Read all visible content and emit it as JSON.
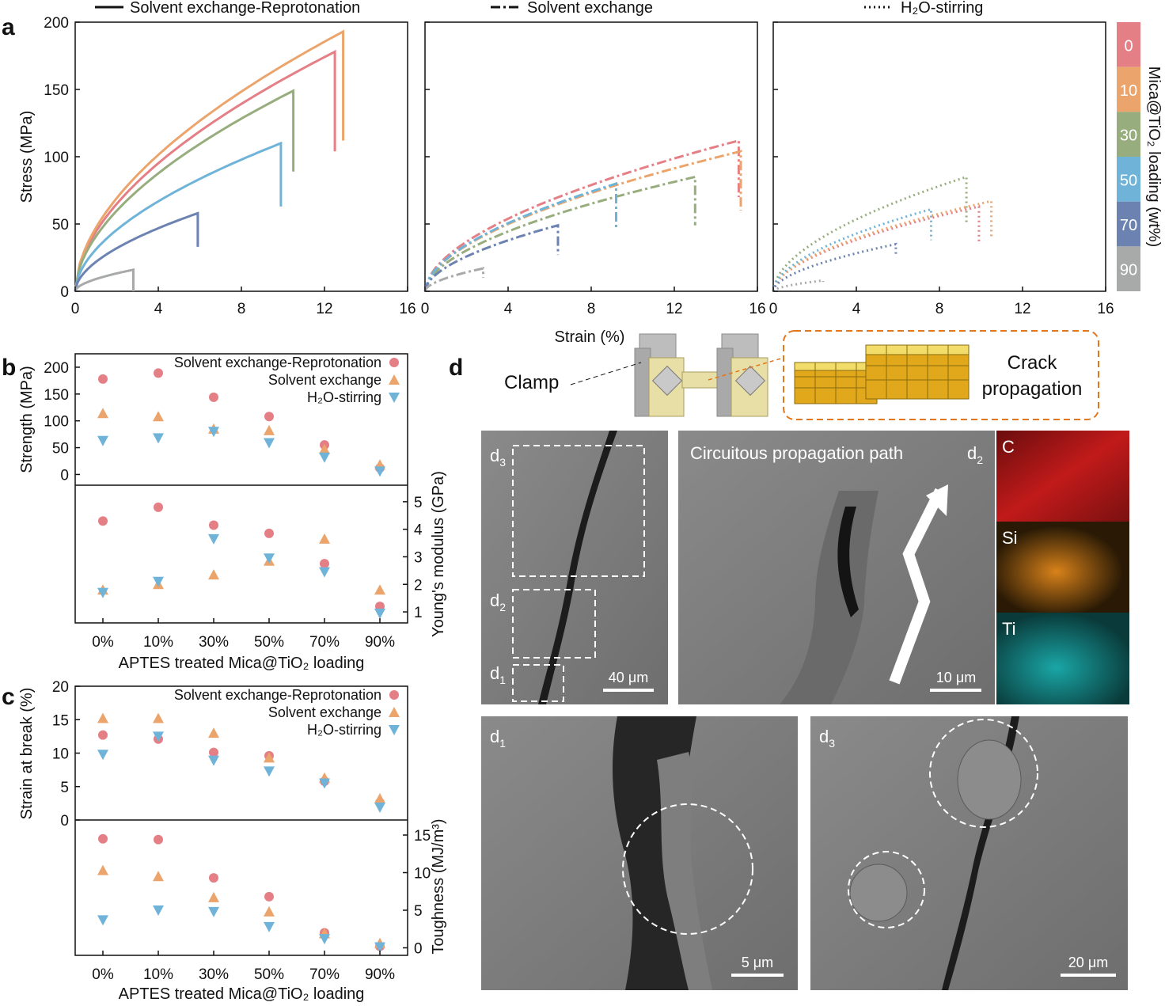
{
  "figure": {
    "panels": {
      "a": "a",
      "b": "b",
      "c": "c",
      "d": "d"
    },
    "colors": {
      "0": "#e57f86",
      "10": "#eba56c",
      "30": "#97ad7d",
      "50": "#6fb4d8",
      "70": "#6c83b1",
      "90": "#a8aaaa"
    },
    "colorbar": {
      "labels": [
        "0",
        "10",
        "30",
        "50",
        "70",
        "90"
      ],
      "title": "Mica@TiO₂ loading (wt%)"
    }
  },
  "chart_data": [
    {
      "id": "a-left",
      "type": "line",
      "title": "Solvent exchange-Reprotonation",
      "legend_style": "solid",
      "xlabel": "Strain (%)",
      "ylabel": "Stress (MPa)",
      "xlim": [
        0,
        16
      ],
      "ylim": [
        0,
        200
      ],
      "xticks": [
        "0",
        "4",
        "8",
        "12",
        "16"
      ],
      "yticks": [
        "0",
        "50",
        "100",
        "150",
        "200"
      ],
      "series": [
        {
          "name": "0",
          "break_strain": 12.5,
          "max_stress": 178,
          "drop_to": 104
        },
        {
          "name": "10",
          "break_strain": 12.9,
          "max_stress": 193,
          "drop_to": 112
        },
        {
          "name": "30",
          "break_strain": 10.5,
          "max_stress": 149,
          "drop_to": 89
        },
        {
          "name": "50",
          "break_strain": 9.9,
          "max_stress": 110,
          "drop_to": 63
        },
        {
          "name": "70",
          "break_strain": 5.9,
          "max_stress": 58,
          "drop_to": 33
        },
        {
          "name": "90",
          "break_strain": 2.8,
          "max_stress": 16,
          "drop_to": 0
        }
      ]
    },
    {
      "id": "a-middle",
      "type": "line",
      "title": "Solvent exchange",
      "legend_style": "dash-dot",
      "xlim": [
        0,
        16
      ],
      "ylim": [
        0,
        200
      ],
      "xticks": [
        "0",
        "4",
        "8",
        "12",
        "16"
      ],
      "series": [
        {
          "name": "0",
          "break_strain": 15.1,
          "max_stress": 112,
          "drop_to": 70
        },
        {
          "name": "10",
          "break_strain": 15.2,
          "max_stress": 104,
          "drop_to": 60
        },
        {
          "name": "30",
          "break_strain": 13.0,
          "max_stress": 85,
          "drop_to": 49
        },
        {
          "name": "50",
          "break_strain": 9.2,
          "max_stress": 80,
          "drop_to": 46
        },
        {
          "name": "70",
          "break_strain": 6.4,
          "max_stress": 49,
          "drop_to": 27
        },
        {
          "name": "90",
          "break_strain": 2.8,
          "max_stress": 17,
          "drop_to": 10
        }
      ]
    },
    {
      "id": "a-right",
      "type": "line",
      "title": "H₂O-stirring",
      "legend_style": "dotted",
      "xlim": [
        0,
        16
      ],
      "ylim": [
        0,
        200
      ],
      "xticks": [
        "0",
        "4",
        "8",
        "12",
        "16"
      ],
      "series": [
        {
          "name": "0",
          "break_strain": 9.9,
          "max_stress": 63,
          "drop_to": 37
        },
        {
          "name": "10",
          "break_strain": 10.5,
          "max_stress": 67,
          "drop_to": 40
        },
        {
          "name": "30",
          "break_strain": 9.3,
          "max_stress": 85,
          "drop_to": 50
        },
        {
          "name": "50",
          "break_strain": 7.6,
          "max_stress": 61,
          "drop_to": 38
        },
        {
          "name": "70",
          "break_strain": 5.9,
          "max_stress": 35,
          "drop_to": 27
        },
        {
          "name": "90",
          "break_strain": 2.4,
          "max_stress": 8,
          "drop_to": 7
        }
      ]
    },
    {
      "id": "b",
      "type": "scatter",
      "xlabel": "APTES treated Mica@TiO₂ loading",
      "categories": [
        "0%",
        "10%",
        "30%",
        "50%",
        "70%",
        "90%"
      ],
      "top": {
        "ylabel": "Strength (MPa)",
        "ylim": [
          -20,
          225
        ],
        "yticks": [
          "0",
          "50",
          "100",
          "150",
          "200"
        ],
        "series": [
          {
            "name": "Solvent exchange-Reprotonation",
            "marker": "circle",
            "color": "#e57f86",
            "values": [
              178,
              189,
              144,
              108,
              55,
              12
            ]
          },
          {
            "name": "Solvent exchange",
            "marker": "triangle-up",
            "color": "#eba56c",
            "values": [
              114,
              108,
              85,
              82,
              47,
              18
            ]
          },
          {
            "name": "H₂O-stirring",
            "marker": "triangle-down",
            "color": "#6fb4d8",
            "values": [
              63,
              68,
              80,
              59,
              32,
              6
            ]
          }
        ]
      },
      "bottom": {
        "ylabel": "Young's modulus (GPa)",
        "ylim": [
          0.6,
          5.6
        ],
        "yticks": [
          "1",
          "2",
          "3",
          "4",
          "5"
        ],
        "series": [
          {
            "name": "Solvent exchange-Reprotonation",
            "marker": "circle",
            "color": "#e57f86",
            "values": [
              4.3,
              4.8,
              4.15,
              3.85,
              2.75,
              1.2
            ]
          },
          {
            "name": "Solvent exchange",
            "marker": "triangle-up",
            "color": "#eba56c",
            "values": [
              1.8,
              2.0,
              2.35,
              2.85,
              3.65,
              1.8
            ]
          },
          {
            "name": "H₂O-stirring",
            "marker": "triangle-down",
            "color": "#6fb4d8",
            "values": [
              1.7,
              2.1,
              3.65,
              2.95,
              2.45,
              0.95
            ]
          }
        ]
      }
    },
    {
      "id": "c",
      "type": "scatter",
      "xlabel": "APTES treated Mica@TiO₂ loading",
      "categories": [
        "0%",
        "10%",
        "30%",
        "50%",
        "70%",
        "90%"
      ],
      "top": {
        "ylabel": "Strain at break (%)",
        "ylim": [
          0,
          20
        ],
        "yticks": [
          "0",
          "5",
          "10",
          "15",
          "20"
        ],
        "series": [
          {
            "name": "Solvent exchange-Reprotonation",
            "marker": "circle",
            "color": "#e57f86",
            "values": [
              12.7,
              12.1,
              10.1,
              9.6,
              5.8,
              2.6
            ]
          },
          {
            "name": "Solvent exchange",
            "marker": "triangle-up",
            "color": "#eba56c",
            "values": [
              15.2,
              15.2,
              13.0,
              9.3,
              6.3,
              3.2
            ]
          },
          {
            "name": "H₂O-stirring",
            "marker": "triangle-down",
            "color": "#6fb4d8",
            "values": [
              9.8,
              12.5,
              8.9,
              7.3,
              5.5,
              1.9
            ]
          }
        ]
      },
      "bottom": {
        "ylabel": "Toughness (MJ/m³)",
        "ylim": [
          -1,
          17
        ],
        "yticks": [
          "0",
          "5",
          "10",
          "15"
        ],
        "series": [
          {
            "name": "Solvent exchange-Reprotonation",
            "marker": "circle",
            "color": "#e57f86",
            "values": [
              14.5,
              14.4,
              9.3,
              6.8,
              2.0,
              0.2
            ]
          },
          {
            "name": "Solvent exchange",
            "marker": "triangle-up",
            "color": "#eba56c",
            "values": [
              10.3,
              9.5,
              6.7,
              4.8,
              1.9,
              0.6
            ]
          },
          {
            "name": "H₂O-stirring",
            "marker": "triangle-down",
            "color": "#6fb4d8",
            "values": [
              3.7,
              5.0,
              4.8,
              2.8,
              1.2,
              0.1
            ]
          }
        ]
      }
    }
  ],
  "panel_d": {
    "schematic": {
      "clamp_label": "Clamp",
      "crack_label_line1": "Crack",
      "crack_label_line2": "propagation"
    },
    "images": {
      "d_overview": {
        "label": "d",
        "sub_labels": [
          "3",
          "2",
          "1"
        ],
        "scale": "40 μm"
      },
      "d2": {
        "label": "d",
        "sub": "2",
        "caption": "Circuitous propagation path",
        "scale": "10 μm"
      },
      "eds": [
        "C",
        "Si",
        "Ti"
      ],
      "d1": {
        "label": "d",
        "sub": "1",
        "scale": "5 μm"
      },
      "d3": {
        "label": "d",
        "sub": "3",
        "scale": "20 μm"
      }
    }
  }
}
